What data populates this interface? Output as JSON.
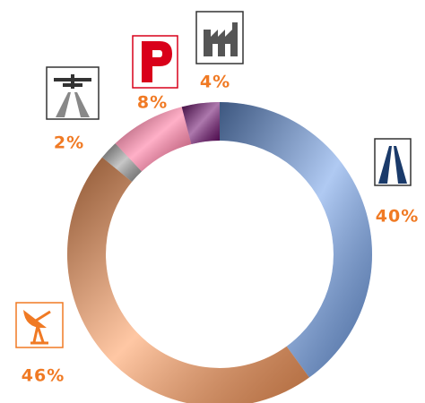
{
  "chart_data": {
    "type": "donut",
    "values": [
      40,
      46,
      2,
      8,
      4
    ],
    "value_labels": [
      "40%",
      "46%",
      "2%",
      "8%",
      "4%"
    ],
    "colors": [
      "#6f9ee8",
      "#ff9a5a",
      "#9a9a9a",
      "#ff6f9a",
      "#6a0a6a"
    ]
  }
}
